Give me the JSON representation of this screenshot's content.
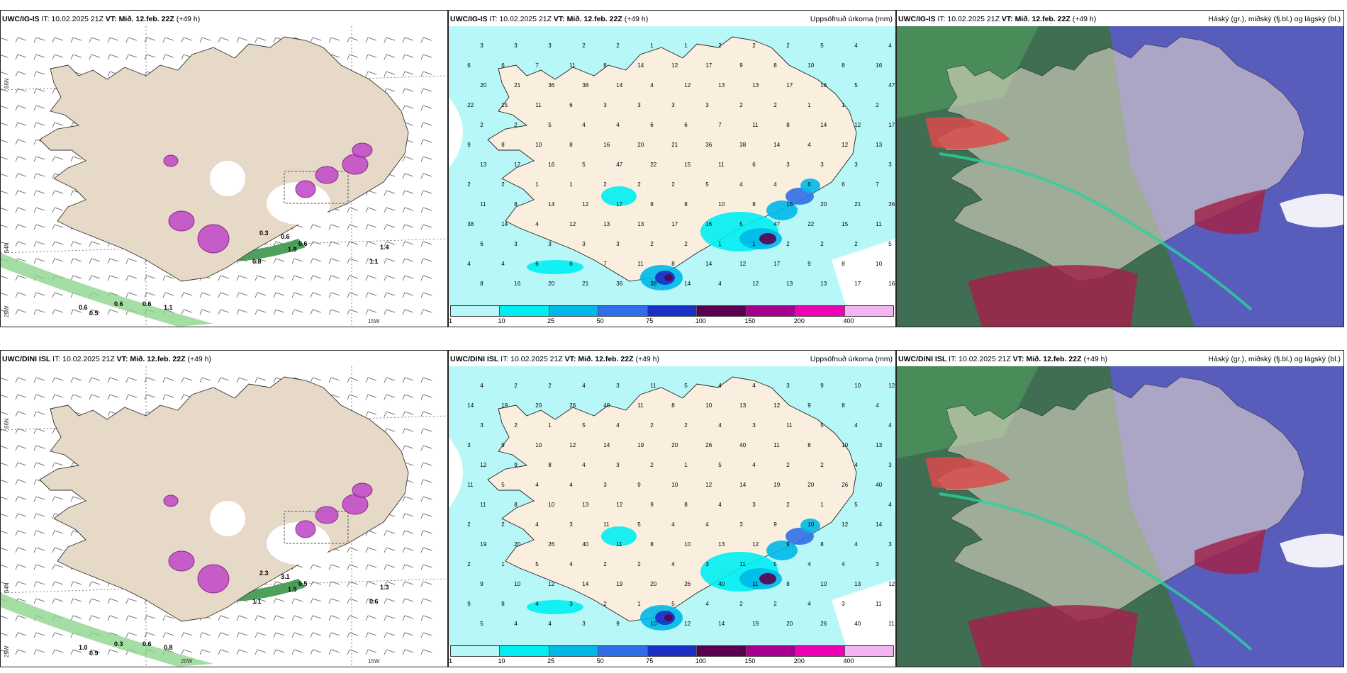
{
  "panels": [
    {
      "model": "UWC/IG-IS",
      "it": "IT: 10.02.2025 21Z",
      "vt": "VT: Mið. 12.feb. 22Z",
      "lead": "(+49 h)",
      "right": "",
      "type": "wind"
    },
    {
      "model": "UWC/IG-IS",
      "it": "IT: 10.02.2025 21Z",
      "vt": "VT: Mið. 12.feb. 22Z",
      "lead": "(+49 h)",
      "right": "Uppsöfnuð úrkoma (mm)",
      "type": "precip"
    },
    {
      "model": "UWC/IG-IS",
      "it": "IT: 10.02.2025 21Z",
      "vt": "VT: Mið. 12.feb. 22Z",
      "lead": "(+49 h)",
      "right": "Háský (gr.), miðský (fj.bl.) og lágský (bl.)",
      "type": "cloud"
    },
    {
      "model": "UWC/DINI ISL",
      "it": "IT: 10.02.2025 21Z",
      "vt": "VT: Mið. 12.feb. 22Z",
      "lead": "(+49 h)",
      "right": "",
      "type": "wind"
    },
    {
      "model": "UWC/DINI ISL",
      "it": "IT: 10.02.2025 21Z",
      "vt": "VT: Mið. 12.feb. 22Z",
      "lead": "(+49 h)",
      "right": "Uppsöfnuð úrkoma (mm)",
      "type": "precip"
    },
    {
      "model": "UWC/DINI ISL",
      "it": "IT: 10.02.2025 21Z",
      "vt": "VT: Mið. 12.feb. 22Z",
      "lead": "(+49 h)",
      "right": "Háský (gr.), miðský (fj.bl.) og lágský (bl.)",
      "type": "cloud"
    }
  ],
  "grid_labels": {
    "lat_66": "66N",
    "lat_64": "64N",
    "lon_25": "25W",
    "lon_20": "20W",
    "lon_15": "15W"
  },
  "legend": {
    "labels": [
      "1",
      "10",
      "25",
      "50",
      "75",
      "100",
      "150",
      "200",
      "400"
    ],
    "colors": [
      "#b8f7f7",
      "#00eef2",
      "#00b8e8",
      "#2f6ee8",
      "#1a2fc4",
      "#5b0050",
      "#a8008e",
      "#ee00b4",
      "#f2b4f2"
    ]
  },
  "precip_values_top": [
    "3",
    "3",
    "3",
    "2",
    "2",
    "1",
    "1",
    "2",
    "2",
    "2",
    "5",
    "4",
    "4",
    "6",
    "6",
    "7",
    "11",
    "8",
    "14",
    "12",
    "17",
    "9",
    "8",
    "10",
    "8",
    "16",
    "20",
    "21",
    "36",
    "38",
    "14",
    "4",
    "12",
    "13",
    "13",
    "17",
    "16",
    "5",
    "47",
    "22",
    "15",
    "11",
    "6",
    "3"
  ],
  "precip_values_bottom": [
    "4",
    "2",
    "2",
    "4",
    "3",
    "11",
    "5",
    "4",
    "4",
    "3",
    "9",
    "10",
    "12",
    "14",
    "19",
    "20",
    "26",
    "40",
    "11",
    "8",
    "10",
    "13",
    "12",
    "9",
    "8",
    "4",
    "3",
    "2",
    "1",
    "5"
  ],
  "wind_values_top": [
    "0.6",
    "0.5",
    "0.6",
    "0.6",
    "1.1",
    "0.8",
    "0.3",
    "0.6",
    "1.8",
    "0.6",
    "1.1",
    "1.4"
  ],
  "wind_values_bottom": [
    "1.0",
    "0.9",
    "0.3",
    "0.6",
    "0.8",
    "1.1",
    "2.3",
    "3.1",
    "1.5",
    "0.5",
    "0.6",
    "1.3"
  ]
}
